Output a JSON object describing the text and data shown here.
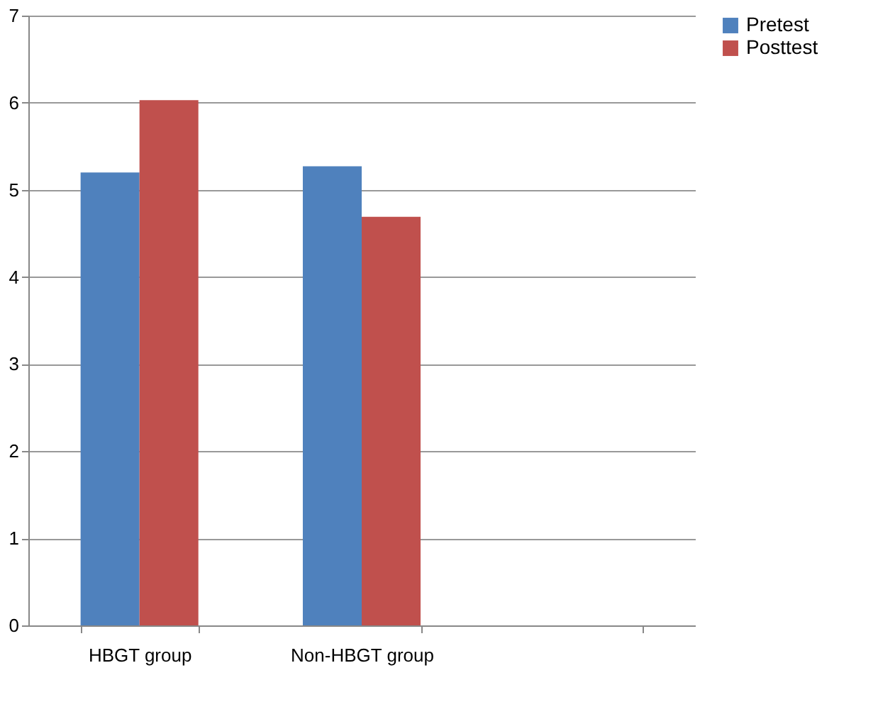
{
  "chart_data": {
    "type": "bar",
    "categories": [
      "HBGT group",
      "Non-HBGT group",
      null
    ],
    "series": [
      {
        "name": "Pretest",
        "color": "#4f81bd",
        "values": [
          5.2,
          5.27,
          null
        ]
      },
      {
        "name": "Posttest",
        "color": "#c0504d",
        "values": [
          6.03,
          4.69,
          null
        ]
      }
    ],
    "ylim": [
      0,
      7
    ],
    "yticks": [
      0,
      1,
      2,
      3,
      4,
      5,
      6,
      7
    ],
    "grid": "y",
    "legend": "right"
  }
}
